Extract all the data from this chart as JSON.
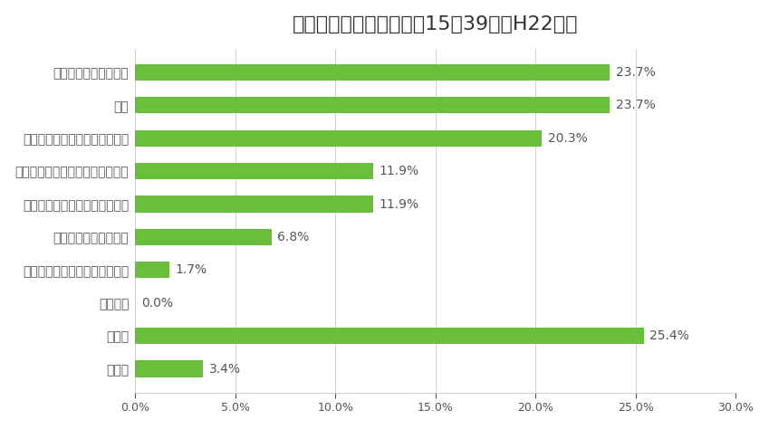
{
  "title": "引きこもりのきっかけ・15〜39歳（H22年）",
  "categories": [
    "無回答",
    "その他",
    "妊娠した",
    "受験に失敗した（高校・大学）",
    "大学になじめなかった",
    "人間関係がうまくいかなかった",
    "不登校（小学校・中学校・高校）",
    "就職活動がうまくいかなかった",
    "病気",
    "職場になじめなかった"
  ],
  "values": [
    3.4,
    25.4,
    0.0,
    1.7,
    6.8,
    11.9,
    11.9,
    20.3,
    23.7,
    23.7
  ],
  "bar_color": "#6abf3a",
  "label_color": "#555555",
  "background_color": "#ffffff",
  "title_color": "#333333",
  "xlim": [
    0,
    30
  ],
  "xticks": [
    0,
    5,
    10,
    15,
    20,
    25,
    30
  ],
  "xtick_labels": [
    "0.0%",
    "5.0%",
    "10.0%",
    "15.0%",
    "20.0%",
    "25.0%",
    "30.0%"
  ],
  "title_fontsize": 16,
  "label_fontsize": 10,
  "value_fontsize": 10,
  "tick_fontsize": 9,
  "bar_height": 0.5
}
